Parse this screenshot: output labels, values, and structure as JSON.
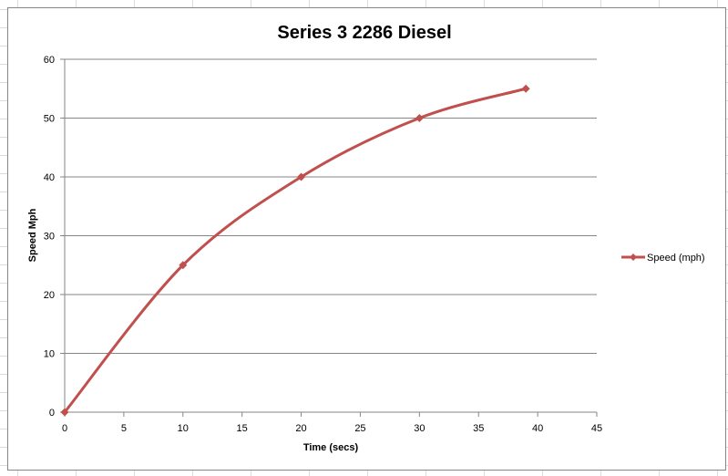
{
  "chart_data": {
    "type": "line",
    "title": "Series 3 2286 Diesel",
    "xlabel": "Time (secs)",
    "ylabel": "Speed Mph",
    "xlim": [
      0,
      45
    ],
    "ylim": [
      0,
      60
    ],
    "x_ticks": [
      0,
      5,
      10,
      15,
      20,
      25,
      30,
      35,
      40,
      45
    ],
    "y_ticks": [
      0,
      10,
      20,
      30,
      40,
      50,
      60
    ],
    "x_tick_labels": [
      "0",
      "5",
      "10",
      "15",
      "20",
      "25",
      "30",
      "35",
      "40",
      "45"
    ],
    "y_tick_labels": [
      "0",
      "10",
      "20",
      "30",
      "40",
      "50",
      "60"
    ],
    "grid": "horizontal",
    "smooth": true,
    "legend_position": "right",
    "series": [
      {
        "name": "Speed (mph)",
        "color": "#c0504d",
        "marker": "diamond",
        "x": [
          0,
          10,
          20,
          30,
          39
        ],
        "y": [
          0,
          25,
          40,
          50,
          55
        ]
      }
    ]
  }
}
